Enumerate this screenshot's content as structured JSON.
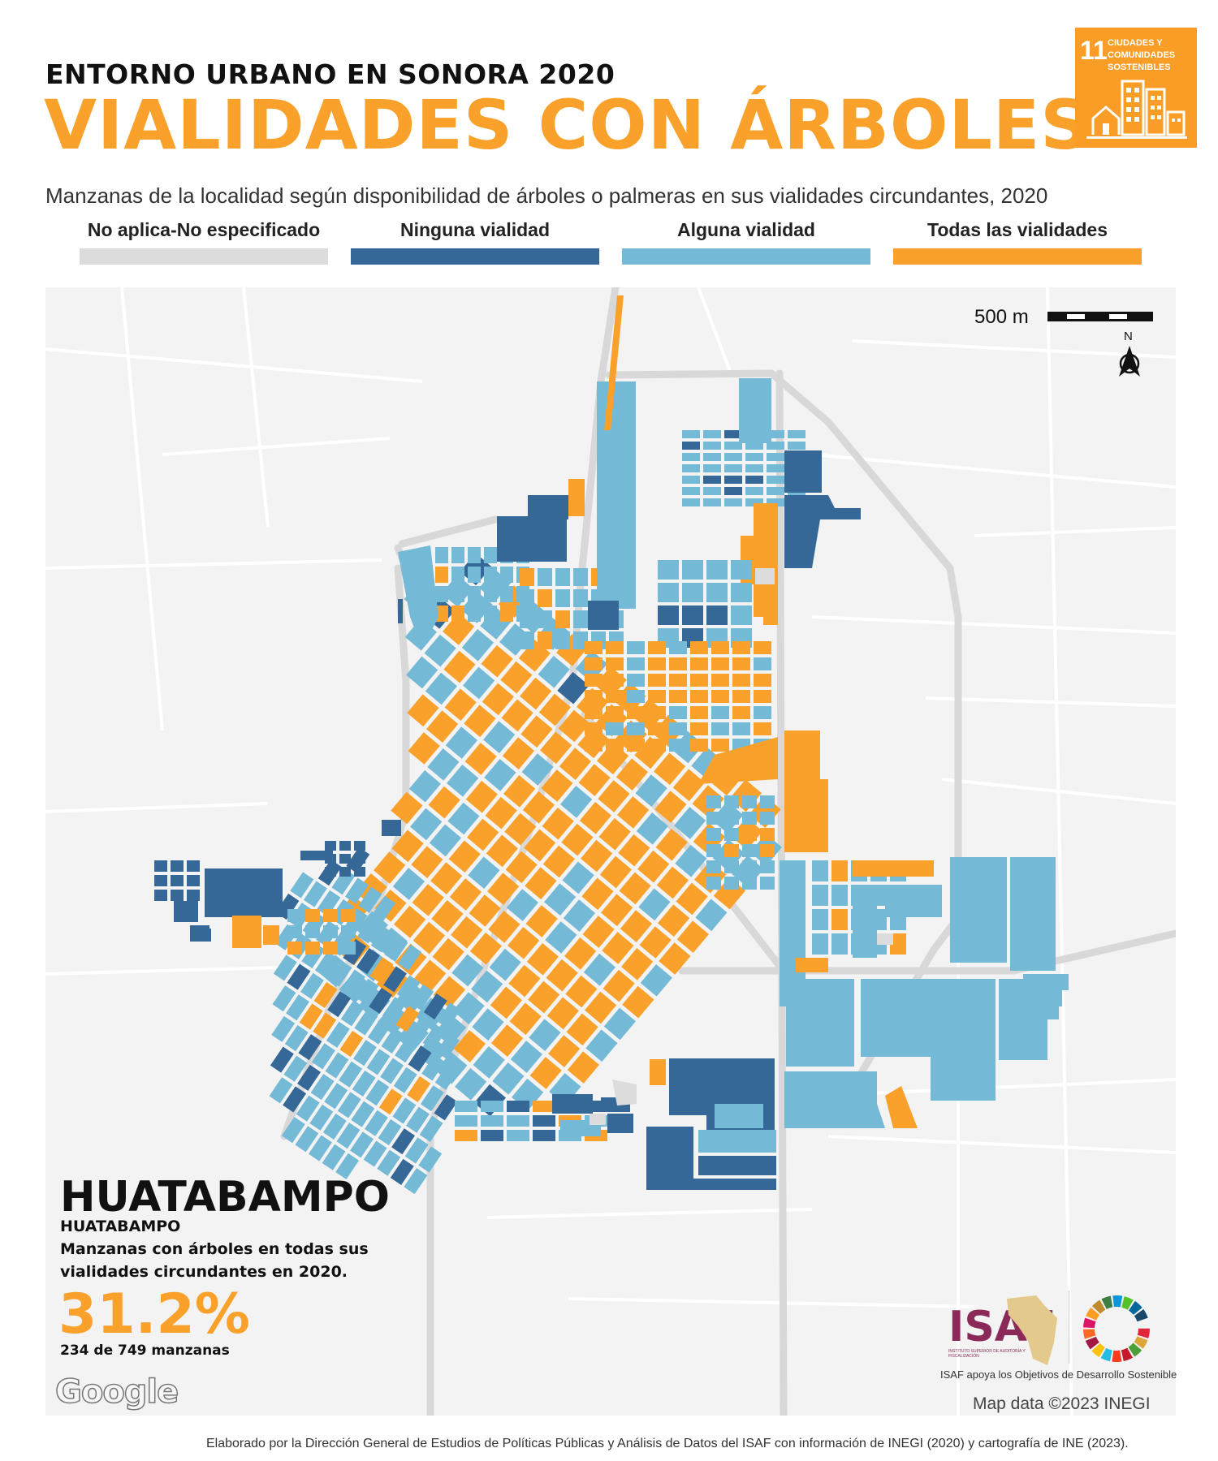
{
  "header": {
    "supertitle": "ENTORNO URBANO EN SONORA 2020",
    "title": "VIALIDADES CON ÁRBOLES",
    "subtitle": "Manzanas de la localidad según disponibilidad de árboles o palmeras en sus vialidades circundantes, 2020"
  },
  "sdg_badge": {
    "number": "11",
    "text": "CIUDADES Y COMUNIDADES SOSTENIBLES",
    "color": "#f99d26"
  },
  "legend": [
    {
      "label": "No aplica-No especificado",
      "color": "#dcdcdc"
    },
    {
      "label": "Ninguna vialidad",
      "color": "#356896"
    },
    {
      "label": "Alguna vialidad",
      "color": "#74b9d6"
    },
    {
      "label": "Todas las vialidades",
      "color": "#f9a12a"
    }
  ],
  "map": {
    "scale_label": "500 m",
    "north_label": "N",
    "locality": "HUATABAMPO",
    "municipality": "HUATABAMPO",
    "description": "Manzanas con árboles en todas sus vialidades circundantes en 2020.",
    "percent": "31.2%",
    "count": "234 de 749 manzanas",
    "basemap_credit": "Google",
    "map_data": "Map data ©2023 INEGI"
  },
  "logos": {
    "isaf": "ISAF",
    "isaf_fullname": "INSTITUTO SUPERIOR DE AUDITORÍA Y FISCALIZACIÓN",
    "tagline": "ISAF apoya los Objetivos de Desarrollo Sostenible"
  },
  "footer": "Elaborado por la Dirección General de Estudios de Políticas Públicas y Análisis de Datos del ISAF con información de INEGI (2020) y cartografía de INE (2023)."
}
